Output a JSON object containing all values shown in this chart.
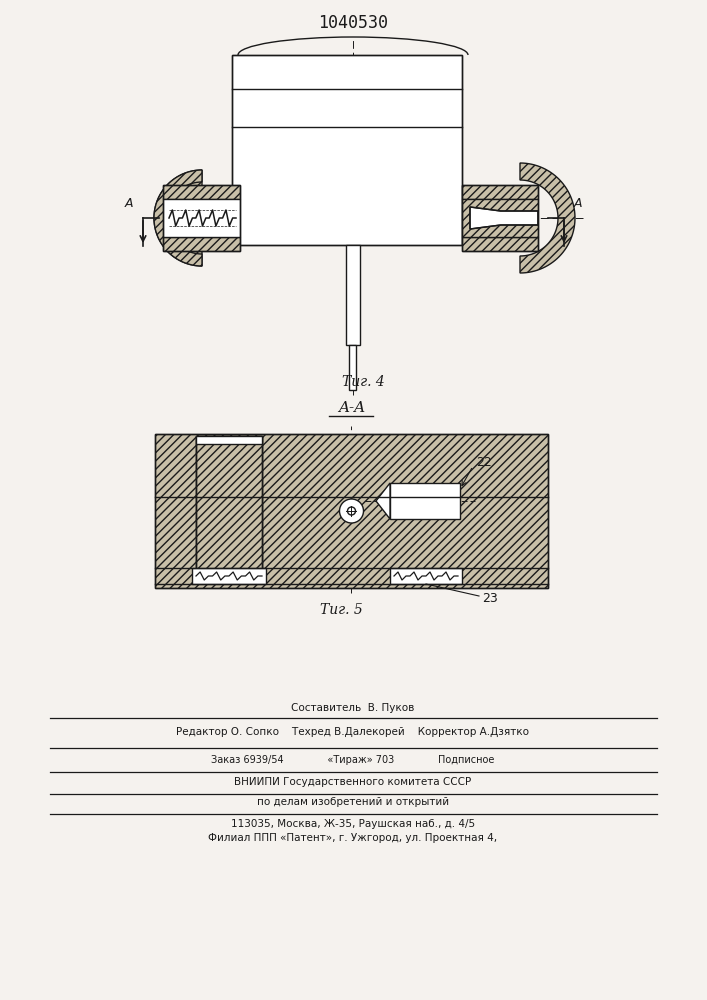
{
  "patent_number": "1040530",
  "fig4_label": "Τиг. 4",
  "fig5_label": "Τиг. 5",
  "aa_label": "A-A",
  "A_label": "A",
  "label_22": "22",
  "label_23": "23",
  "bg_color": "#f5f2ee",
  "line_color": "#1a1a1a",
  "hatch_fc": "#c8bfa8",
  "footer_line1": "Составитель  В. Пуков",
  "footer_line2": "Редактор О. Сопко    Техред В.Далекорей    Корректор А.Дзятко",
  "footer_line3": "Заказ 6939/54              «Тираж» 703              Подписное",
  "footer_line4": "ВНИИПИ Государственного комитета СССР",
  "footer_line5": "по делам изобретений и открытий",
  "footer_line6": "113035, Москва, Ж-35, Раушская наб., д. 4/5",
  "footer_line7": "Филиал ППП «Патент», г. Ужгород, ул. Проектная 4,"
}
